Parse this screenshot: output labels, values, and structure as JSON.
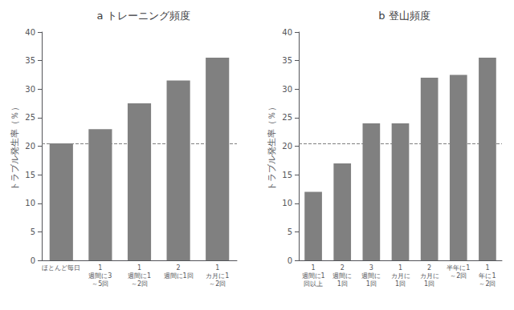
{
  "chart_data": [
    {
      "type": "bar",
      "title": "a トレーニング頻度",
      "categories": [
        "ほとんど毎日",
        "1\n週間に3\n～5回",
        "1\n週間に1\n～2回",
        "2\n週間に1回",
        "1\nカ月に1\n～2回"
      ],
      "values": [
        20.5,
        23.0,
        27.5,
        31.5,
        35.5
      ],
      "reference_line": 20.5,
      "color": "#808080",
      "ylabel": "トラブル発生率（％）",
      "ylim": [
        0,
        40
      ],
      "yticks": [
        0,
        5,
        10,
        15,
        20,
        25,
        30,
        35,
        40
      ],
      "grid": false
    },
    {
      "type": "bar",
      "title": "b 登山頻度",
      "categories": [
        "1\n週間に1\n回以上",
        "2\n週間に\n1回",
        "3\n週間に\n1回",
        "1\nカ月に\n1回",
        "2\nカ月に\n1回",
        "半年に1\n～2回",
        "1\n年に1\n～2回"
      ],
      "values": [
        12.0,
        17.0,
        24.0,
        24.0,
        32.0,
        32.5,
        35.5
      ],
      "reference_line": 20.5,
      "color": "#808080",
      "ylabel": "トラブル発生率（％）",
      "ylim": [
        0,
        40
      ],
      "yticks": [
        0,
        5,
        10,
        15,
        20,
        25,
        30,
        35,
        40
      ],
      "grid": false
    }
  ]
}
